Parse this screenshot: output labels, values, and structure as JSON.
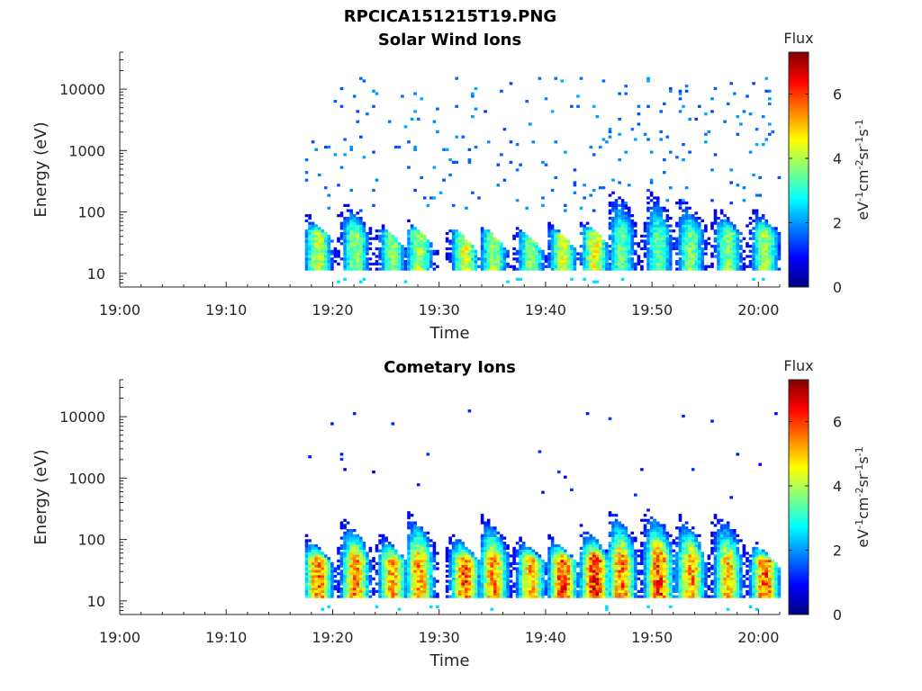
{
  "figure_title": "RPCICA151215T19.PNG",
  "chart_data": [
    {
      "type": "heatmap",
      "title": "Solar Wind Ions",
      "xlabel": "Time",
      "ylabel": "Energy (eV)",
      "x_ticks": [
        "19:00",
        "19:10",
        "19:20",
        "19:30",
        "19:40",
        "19:50",
        "20:00"
      ],
      "xlim": [
        "19:00",
        "20:02"
      ],
      "y_ticks": [
        "10",
        "100",
        "1000",
        "10000"
      ],
      "ylim": [
        6,
        40000
      ],
      "y_scale": "log",
      "data_start": "19:17",
      "colorbar": {
        "label": "Flux",
        "units": "eV-1cm-2sr-1s-1",
        "ticks": [
          "0",
          "2",
          "4",
          "6"
        ],
        "range": [
          0,
          7.3
        ]
      },
      "bursts_min": [
        18.5,
        22,
        25.5,
        28,
        32.3,
        35,
        38.5,
        41.5,
        44.5,
        47,
        50.5,
        53.5,
        57,
        60.5
      ],
      "bursts_low_energy_peak_flux": [
        4.5,
        4.2,
        4.0,
        4.3,
        4.6,
        4.2,
        4.0,
        4.5,
        4.8,
        3.8,
        3.7,
        3.9,
        4.0,
        4.3
      ],
      "bursts_high_energy_tail_eV": [
        150,
        250,
        100,
        120,
        90,
        100,
        90,
        100,
        120,
        400,
        400,
        300,
        200,
        200
      ],
      "background_flux": 1.6,
      "background_energy_range": [
        100,
        15000
      ]
    },
    {
      "type": "heatmap",
      "title": "Cometary Ions",
      "xlabel": "Time",
      "ylabel": "Energy (eV)",
      "x_ticks": [
        "19:00",
        "19:10",
        "19:20",
        "19:30",
        "19:40",
        "19:50",
        "20:00"
      ],
      "xlim": [
        "19:00",
        "20:02"
      ],
      "y_ticks": [
        "10",
        "100",
        "1000",
        "10000"
      ],
      "ylim": [
        6,
        40000
      ],
      "y_scale": "log",
      "data_start": "19:17",
      "colorbar": {
        "label": "Flux",
        "units": "eV-1cm-2sr-1s-1",
        "ticks": [
          "0",
          "2",
          "4",
          "6"
        ],
        "range": [
          0,
          7.3
        ]
      },
      "bursts_min": [
        18.5,
        22,
        25.5,
        28,
        32.3,
        35,
        38.5,
        41.5,
        44.5,
        47,
        50.5,
        53.5,
        57,
        60.5
      ],
      "bursts_low_energy_peak_flux": [
        6.0,
        5.8,
        5.5,
        5.8,
        6.3,
        5.8,
        5.5,
        6.5,
        6.8,
        6.0,
        6.4,
        5.8,
        5.3,
        6.2
      ],
      "bursts_high_energy_tail_eV": [
        180,
        350,
        200,
        450,
        200,
        400,
        180,
        180,
        250,
        500,
        500,
        400,
        450,
        150
      ],
      "background_flux": 1.0,
      "background_energy_range": [
        400,
        12000
      ]
    }
  ]
}
